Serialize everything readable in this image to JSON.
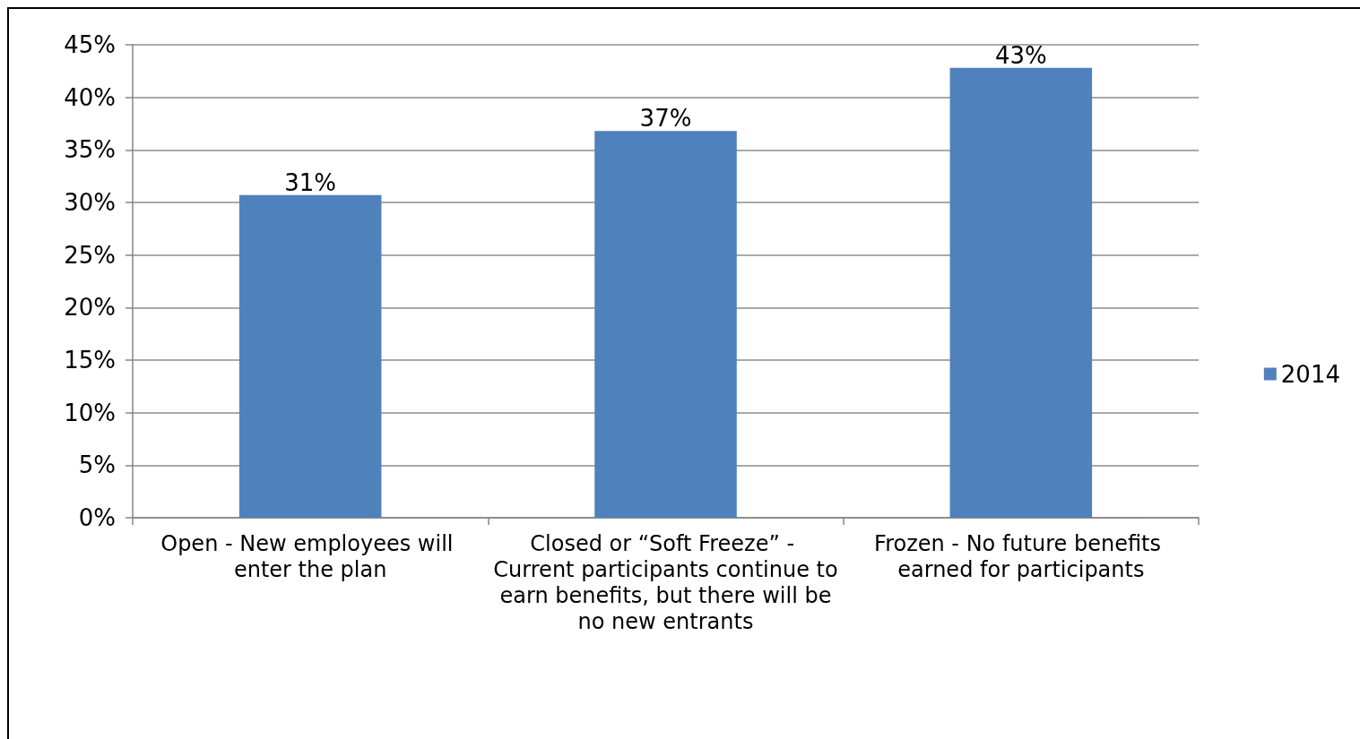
{
  "chart_data": {
    "type": "bar",
    "categories": [
      "Open - New employees will enter the plan",
      "Closed or “Soft Freeze” - Current participants continue to earn benefits, but there will be no new entrants",
      "Frozen - No future benefits earned for participants"
    ],
    "series": [
      {
        "name": "2014",
        "color": "#4f81bd",
        "values": [
          30.7,
          36.8,
          42.8
        ],
        "value_labels": [
          "31%",
          "37%",
          "43%"
        ]
      }
    ],
    "ylim": [
      0,
      45
    ],
    "yticks": [
      {
        "value": 0,
        "label": "0%"
      },
      {
        "value": 5,
        "label": "5%"
      },
      {
        "value": 10,
        "label": "10%"
      },
      {
        "value": 15,
        "label": "15%"
      },
      {
        "value": 20,
        "label": "20%"
      },
      {
        "value": 25,
        "label": "25%"
      },
      {
        "value": 30,
        "label": "30%"
      },
      {
        "value": 35,
        "label": "35%"
      },
      {
        "value": 40,
        "label": "40%"
      },
      {
        "value": 45,
        "label": "45%"
      }
    ],
    "grid": "y",
    "legend": "right"
  }
}
